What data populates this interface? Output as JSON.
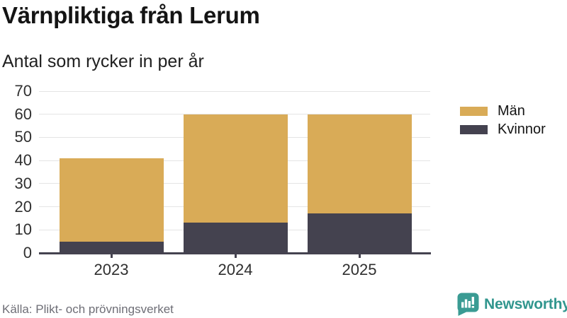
{
  "header": {
    "title": "Värnpliktiga från Lerum",
    "subtitle": "Antal som rycker in per år"
  },
  "chart_data": {
    "type": "bar",
    "stacked": true,
    "title": "Värnpliktiga från Lerum",
    "subtitle": "Antal som rycker in per år",
    "categories": [
      "2023",
      "2024",
      "2025"
    ],
    "series": [
      {
        "name": "Män",
        "color": "#d9ab57",
        "values": [
          36,
          47,
          43
        ]
      },
      {
        "name": "Kvinnor",
        "color": "#44424f",
        "values": [
          5,
          13,
          17
        ]
      }
    ],
    "stack_totals": [
      41,
      60,
      60
    ],
    "ylim": [
      0,
      70
    ],
    "yticks": [
      0,
      10,
      20,
      30,
      40,
      50,
      60,
      70
    ],
    "grid": true,
    "legend_position": "right",
    "xlabel": "",
    "ylabel": ""
  },
  "footer": {
    "source": "Källa: Plikt- och prövningsverket",
    "brand": "Newsworthy"
  },
  "colors": {
    "men": "#d9ab57",
    "women": "#44424f",
    "gridline": "#e4e4e4",
    "axis": "#44424f",
    "brand_teal": "#31968e",
    "source_text": "#6e6e76"
  }
}
